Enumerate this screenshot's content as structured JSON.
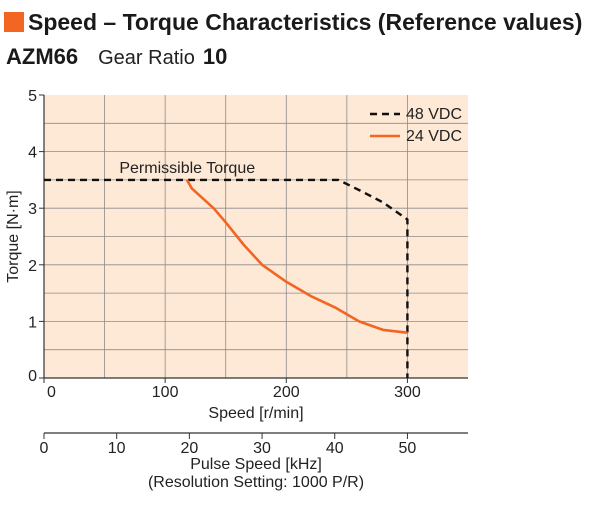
{
  "header": {
    "title": "Speed – Torque Characteristics (Reference values)",
    "accent_color": "#f26522"
  },
  "model": {
    "name": "AZM66",
    "gear_ratio_label": "Gear Ratio",
    "gear_ratio_value": "10"
  },
  "chart_data": {
    "type": "line",
    "xlabel": "Speed [r/min]",
    "ylabel": "Torque [N·m]",
    "xlim": [
      0,
      350
    ],
    "ylim": [
      0,
      5
    ],
    "x_ticks": [
      0,
      100,
      200,
      300
    ],
    "y_ticks": [
      0,
      1,
      2,
      3,
      4,
      5
    ],
    "grid": true,
    "legend_position": "top-right",
    "annotation": {
      "text": "Permissible Torque",
      "x": 120,
      "y": 3.5
    },
    "series": [
      {
        "name": "48 VDC",
        "color": "#111111",
        "style": "dashed",
        "points": [
          [
            0,
            3.5
          ],
          [
            243,
            3.5
          ],
          [
            262,
            3.3
          ],
          [
            280,
            3.1
          ],
          [
            290,
            2.95
          ],
          [
            300,
            2.8
          ],
          [
            300,
            0
          ]
        ]
      },
      {
        "name": "24 VDC",
        "color": "#f26522",
        "style": "solid",
        "points": [
          [
            118,
            3.5
          ],
          [
            122,
            3.35
          ],
          [
            140,
            3.0
          ],
          [
            150,
            2.75
          ],
          [
            165,
            2.35
          ],
          [
            180,
            2.0
          ],
          [
            200,
            1.7
          ],
          [
            220,
            1.45
          ],
          [
            240,
            1.25
          ],
          [
            260,
            1.0
          ],
          [
            280,
            0.85
          ],
          [
            300,
            0.8
          ]
        ]
      }
    ],
    "secondary_x_axis": {
      "label": "Pulse Speed [kHz]",
      "sublabel": "(Resolution Setting: 1000 P/R)",
      "ticks": [
        0,
        10,
        20,
        30,
        40,
        50
      ],
      "max_value": 50,
      "equivalent_speed_at_max": 300
    }
  }
}
